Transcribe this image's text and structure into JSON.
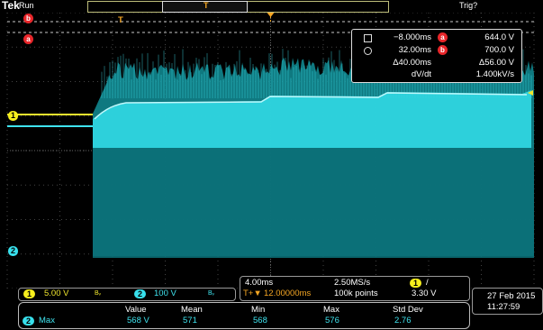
{
  "header": {
    "brand": "Tek",
    "status": "Run",
    "trigger_status": "Trig?"
  },
  "markers": {
    "ref_b": "b",
    "ref_a": "a",
    "trigger_pos": "T",
    "channel1": "1",
    "channel2": "2"
  },
  "cursor_readout": {
    "t1": "−8.000ms",
    "t2": "32.00ms",
    "dt": "Δ40.00ms",
    "dvdt_label": "dV/dt",
    "v_a": "644.0 V",
    "v_b": "700.0 V",
    "dv": "Δ56.00 V",
    "dvdt": "1.400kV/s",
    "badge_a": "a",
    "badge_b": "b"
  },
  "channel_settings": {
    "ch1_num": "1",
    "ch1_scale": "5.00 V",
    "ch2_num": "2",
    "ch2_scale": "100 V",
    "bw_symbol": "Bᵥ"
  },
  "timebase": {
    "scale": "4.00ms",
    "sample_rate": "2.50MS/s",
    "trig_offset": "12.00000ms",
    "record_length": "100k points",
    "trig_source": "1",
    "trig_slope": "/",
    "trig_level": "3.30 V",
    "trig_icon": "T+▼"
  },
  "datetime": {
    "date": "27 Feb 2015",
    "time": "11:27:59"
  },
  "measurements": {
    "headers": [
      "Value",
      "Mean",
      "Min",
      "Max",
      "Std Dev"
    ],
    "rows": [
      {
        "channel": "2",
        "label": "Max",
        "values": [
          "568 V",
          "571",
          "568",
          "576",
          "2.76"
        ]
      }
    ]
  },
  "colors": {
    "ch1": "#f0e62e",
    "ch2": "#3fe3ee",
    "trigger": "#f5a623",
    "cursor_badge": "#e8262a"
  }
}
